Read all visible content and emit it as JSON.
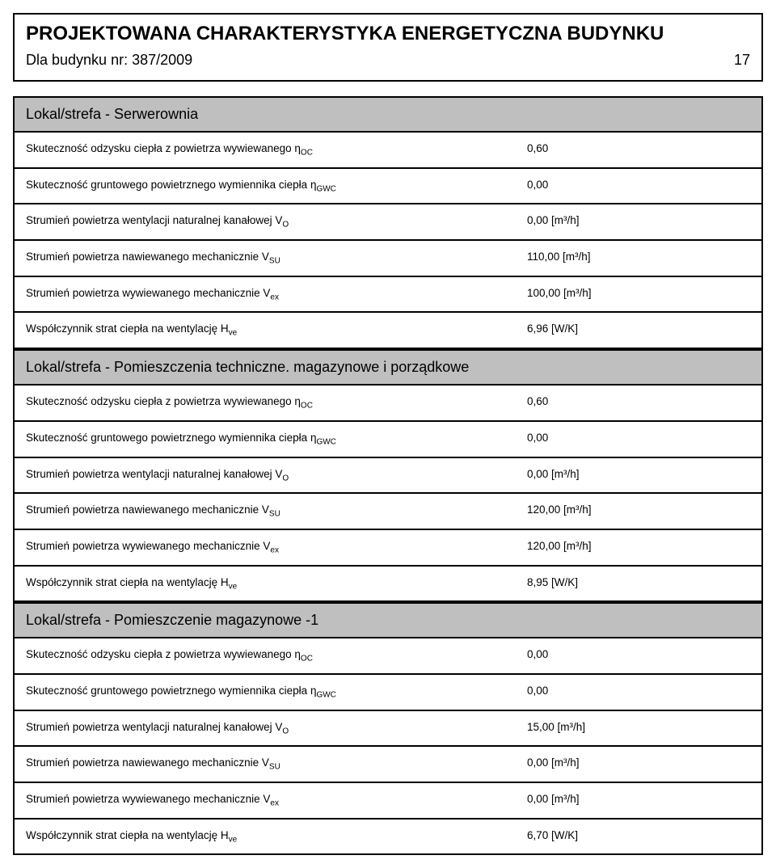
{
  "header": {
    "title": "PROJEKTOWANA CHARAKTERYSTYKA ENERGETYCZNA BUDYNKU",
    "subtitle": "Dla budynku nr: 387/2009",
    "page": "17"
  },
  "sections": [
    {
      "title": "Lokal/strefa - Serwerownia",
      "rows": [
        {
          "label_html": "Skuteczność odzysku ciepła z powietrza wywiewanego η<sub>OC</sub>",
          "value": "0,60"
        },
        {
          "label_html": "Skuteczność gruntowego powietrznego wymiennika ciepła η<sub>GWC</sub>",
          "value": "0,00"
        },
        {
          "label_html": "Strumień powietrza wentylacji naturalnej kanałowej V<sub>O</sub>",
          "value": "0,00 [m³/h]"
        },
        {
          "label_html": "Strumień powietrza nawiewanego mechanicznie V<sub>SU</sub>",
          "value": "110,00 [m³/h]"
        },
        {
          "label_html": "Strumień powietrza wywiewanego mechanicznie V<sub>ex</sub>",
          "value": "100,00 [m³/h]"
        },
        {
          "label_html": "Współczynnik strat ciepła na wentylację H<sub>ve</sub>",
          "value": "6,96 [W/K]"
        }
      ]
    },
    {
      "title": "Lokal/strefa - Pomieszczenia techniczne. magazynowe i porządkowe",
      "rows": [
        {
          "label_html": "Skuteczność odzysku ciepła z powietrza wywiewanego η<sub>OC</sub>",
          "value": "0,60"
        },
        {
          "label_html": "Skuteczność gruntowego powietrznego wymiennika ciepła η<sub>GWC</sub>",
          "value": "0,00"
        },
        {
          "label_html": "Strumień powietrza wentylacji naturalnej kanałowej V<sub>O</sub>",
          "value": "0,00 [m³/h]"
        },
        {
          "label_html": "Strumień powietrza nawiewanego mechanicznie V<sub>SU</sub>",
          "value": "120,00 [m³/h]"
        },
        {
          "label_html": "Strumień powietrza wywiewanego mechanicznie V<sub>ex</sub>",
          "value": "120,00 [m³/h]"
        },
        {
          "label_html": "Współczynnik strat ciepła na wentylację H<sub>ve</sub>",
          "value": "8,95 [W/K]"
        }
      ]
    },
    {
      "title": "Lokal/strefa - Pomieszczenie magazynowe -1",
      "rows": [
        {
          "label_html": "Skuteczność odzysku ciepła z powietrza wywiewanego η<sub>OC</sub>",
          "value": "0,00"
        },
        {
          "label_html": "Skuteczność gruntowego powietrznego wymiennika ciepła η<sub>GWC</sub>",
          "value": "0,00"
        },
        {
          "label_html": "Strumień powietrza wentylacji naturalnej kanałowej V<sub>O</sub>",
          "value": "15,00 [m³/h]"
        },
        {
          "label_html": "Strumień powietrza nawiewanego mechanicznie V<sub>SU</sub>",
          "value": "0,00 [m³/h]"
        },
        {
          "label_html": "Strumień powietrza wywiewanego mechanicznie V<sub>ex</sub>",
          "value": "0,00 [m³/h]"
        },
        {
          "label_html": "Współczynnik strat ciepła na wentylację H<sub>ve</sub>",
          "value": "6,70 [W/K]"
        }
      ]
    }
  ],
  "colors": {
    "section_header_bg": "#bfbfbf",
    "border": "#000000",
    "background": "#ffffff"
  }
}
